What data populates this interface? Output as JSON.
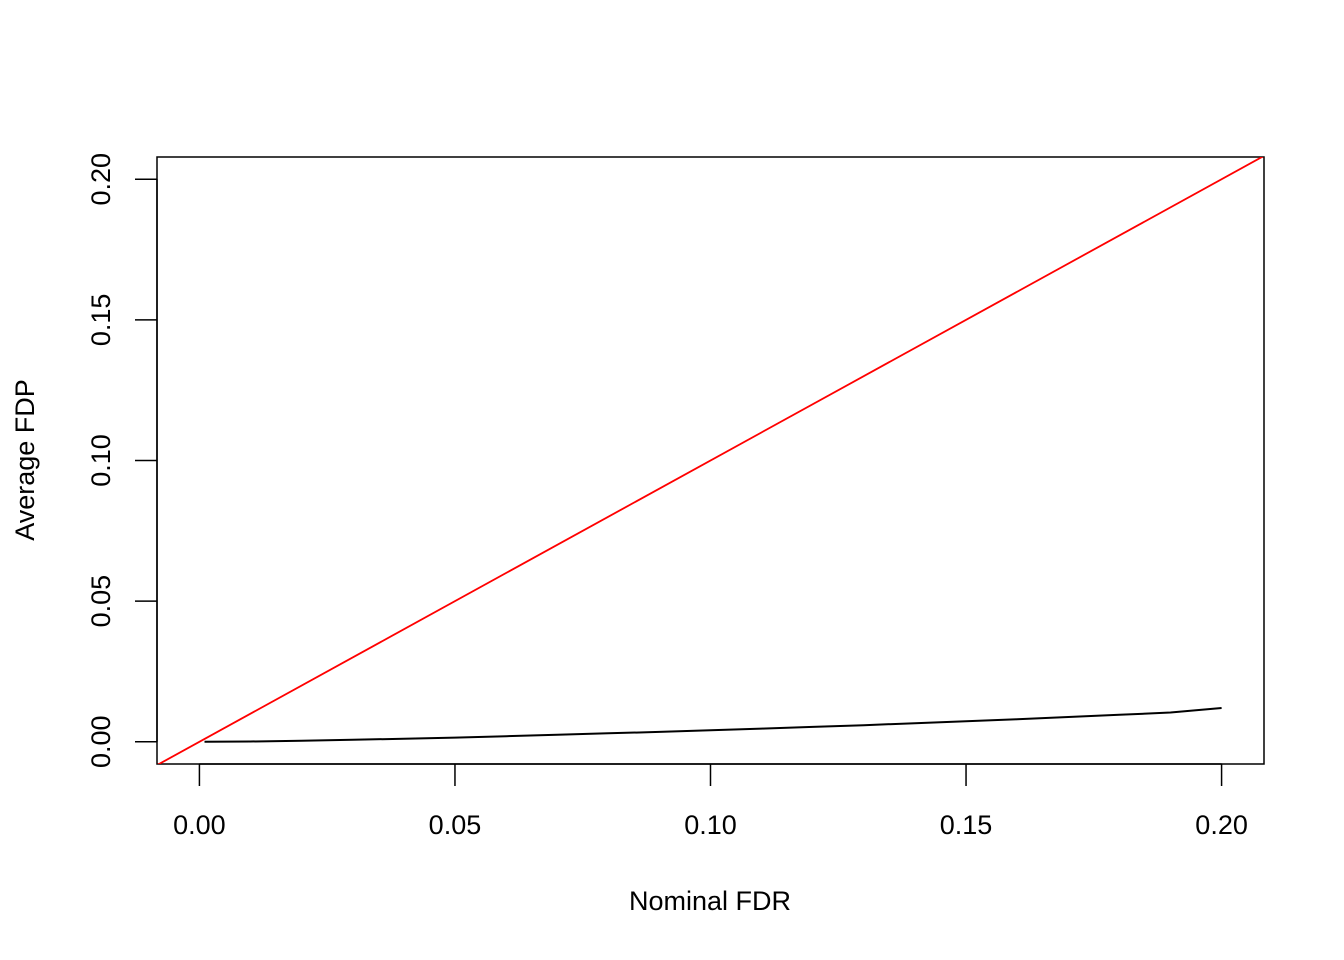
{
  "chart_data": {
    "type": "line",
    "title": "",
    "xlabel": "Nominal FDR",
    "ylabel": "Average FDP",
    "xlim": [
      -0.0083,
      0.2083
    ],
    "ylim": [
      -0.0079,
      0.2079
    ],
    "x_ticks": [
      0.0,
      0.05,
      0.1,
      0.15,
      0.2
    ],
    "x_tick_labels": [
      "0.00",
      "0.05",
      "0.10",
      "0.15",
      "0.20"
    ],
    "y_ticks": [
      0.0,
      0.05,
      0.1,
      0.15,
      0.2
    ],
    "y_tick_labels": [
      "0.00",
      "0.05",
      "0.10",
      "0.15",
      "0.20"
    ],
    "grid": false,
    "legend": "none",
    "series": [
      {
        "color": "#000000",
        "x": [
          0.001,
          0.01,
          0.02,
          0.03,
          0.04,
          0.05,
          0.06,
          0.07,
          0.08,
          0.09,
          0.1,
          0.11,
          0.12,
          0.13,
          0.14,
          0.15,
          0.16,
          0.17,
          0.18,
          0.19,
          0.2
        ],
        "y": [
          0.0,
          0.0001,
          0.0004,
          0.0007,
          0.0011,
          0.0015,
          0.002,
          0.0025,
          0.003,
          0.0035,
          0.0041,
          0.0047,
          0.0053,
          0.0059,
          0.0066,
          0.0073,
          0.008,
          0.0088,
          0.0096,
          0.0104,
          0.012
        ]
      }
    ],
    "reference_line": {
      "type": "abline",
      "intercept": 0,
      "slope": 1,
      "color": "#ff0000"
    }
  }
}
